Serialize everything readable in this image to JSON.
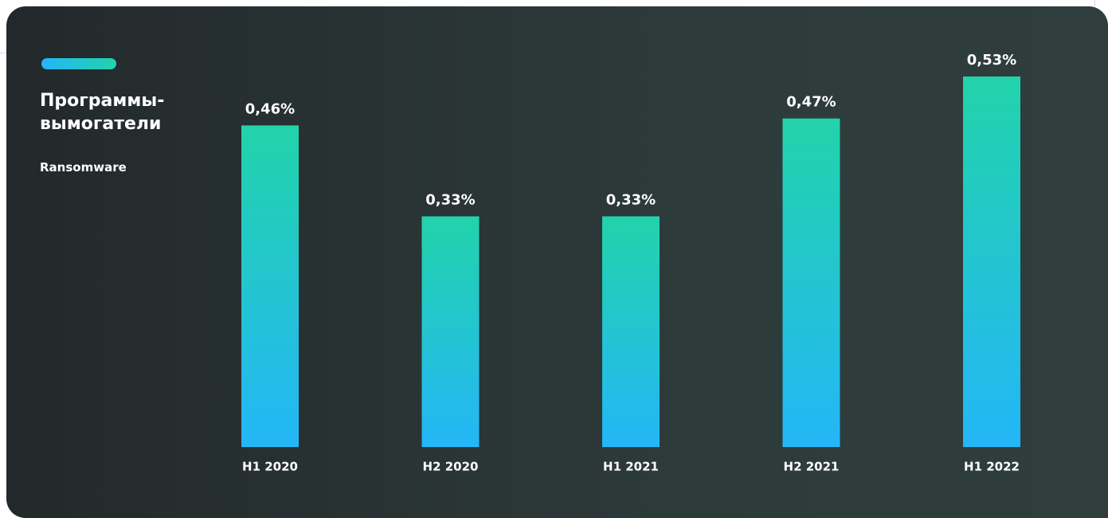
{
  "chart_data": {
    "type": "bar",
    "title": "Программы-вымогатели",
    "subtitle": "Ransomware",
    "categories": [
      "H1 2020",
      "H2 2020",
      "H1 2021",
      "H2 2021",
      "H1 2022"
    ],
    "values": [
      0.46,
      0.33,
      0.33,
      0.47,
      0.53
    ],
    "value_labels": [
      "0,46%",
      "0,33%",
      "0,33%",
      "0,47%",
      "0,53%"
    ],
    "color": [
      "#22d3aa",
      "#24b6f7"
    ]
  }
}
